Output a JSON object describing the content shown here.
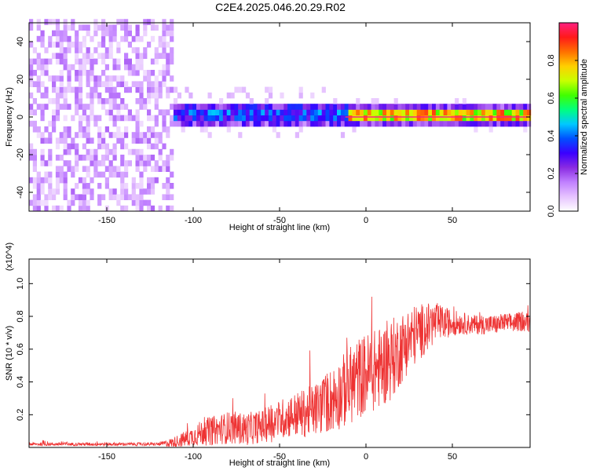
{
  "title": "C2E4.2025.046.20.29.R02",
  "chart_data": [
    {
      "type": "heatmap",
      "title": "C2E4.2025.046.20.29.R02",
      "xlabel": "Height of straight line (km)",
      "ylabel": "Frequency (Hz)",
      "xlim": [
        -195,
        95
      ],
      "ylim": [
        -50,
        50
      ],
      "x_ticks": [
        -150,
        -100,
        -50,
        0,
        50
      ],
      "y_ticks": [
        -40,
        -20,
        0,
        20,
        40
      ],
      "colorbar": {
        "label": "Normalized spectral amplitude",
        "range": [
          0,
          1
        ],
        "ticks": [
          0.0,
          0.2,
          0.4,
          0.6,
          0.8
        ],
        "colors": [
          "#ffffff",
          "#e6c3ff",
          "#c080ff",
          "#8a2be2",
          "#3b00ff",
          "#0050ff",
          "#00c8ff",
          "#00ff80",
          "#40ff00",
          "#c8ff00",
          "#ffd000",
          "#ff7000",
          "#ff1a1a",
          "#ff2080"
        ]
      },
      "regions": [
        {
          "name": "noise",
          "x_range": [
            -195,
            -113
          ],
          "freq_range": [
            -50,
            50
          ],
          "amplitude": 0.15
        },
        {
          "name": "signal",
          "x_range": [
            -113,
            -12
          ],
          "freq_center": 0,
          "freq_halfwidth": 4,
          "amplitude_range": [
            0.3,
            0.5
          ]
        },
        {
          "name": "carrier",
          "x_range": [
            -12,
            95
          ],
          "freq_center": 0,
          "freq_halfwidth": 2,
          "amplitude_range": [
            0.6,
            0.9
          ]
        }
      ],
      "grid": false
    },
    {
      "type": "line",
      "xlabel": "Height of straight line (km)",
      "ylabel": "SNR (10 * v/v)",
      "y_multiplier": "(x10^4)",
      "xlim": [
        -195,
        95
      ],
      "ylim": [
        0,
        1.15
      ],
      "x_ticks": [
        -150,
        -100,
        -50,
        0,
        50
      ],
      "y_ticks": [
        0.2,
        0.4,
        0.6,
        0.8,
        1.0
      ],
      "color": "#ee3333",
      "grid": false,
      "x": [
        -195,
        -180,
        -160,
        -140,
        -120,
        -112,
        -105,
        -100,
        -95,
        -90,
        -85,
        -80,
        -75,
        -70,
        -65,
        -60,
        -55,
        -50,
        -45,
        -40,
        -35,
        -30,
        -25,
        -20,
        -15,
        -10,
        -5,
        0,
        5,
        10,
        15,
        20,
        25,
        30,
        35,
        40,
        45,
        50,
        55,
        60,
        65,
        70,
        75,
        80,
        85,
        90,
        95
      ],
      "y": [
        0.02,
        0.02,
        0.02,
        0.02,
        0.02,
        0.03,
        0.05,
        0.07,
        0.09,
        0.1,
        0.11,
        0.12,
        0.12,
        0.11,
        0.12,
        0.13,
        0.15,
        0.17,
        0.19,
        0.2,
        0.21,
        0.23,
        0.26,
        0.29,
        0.33,
        0.37,
        0.42,
        0.45,
        0.47,
        0.5,
        0.54,
        0.6,
        0.66,
        0.7,
        0.73,
        0.76,
        0.76,
        0.76,
        0.76,
        0.75,
        0.75,
        0.75,
        0.75,
        0.76,
        0.76,
        0.77,
        0.76
      ],
      "spread": [
        0.01,
        0.01,
        0.01,
        0.01,
        0.01,
        0.03,
        0.05,
        0.06,
        0.08,
        0.09,
        0.09,
        0.1,
        0.1,
        0.1,
        0.1,
        0.1,
        0.12,
        0.12,
        0.13,
        0.14,
        0.15,
        0.16,
        0.18,
        0.2,
        0.22,
        0.24,
        0.25,
        0.25,
        0.25,
        0.25,
        0.25,
        0.22,
        0.2,
        0.18,
        0.15,
        0.13,
        0.1,
        0.08,
        0.07,
        0.06,
        0.06,
        0.06,
        0.06,
        0.06,
        0.06,
        0.06,
        0.06
      ]
    }
  ]
}
